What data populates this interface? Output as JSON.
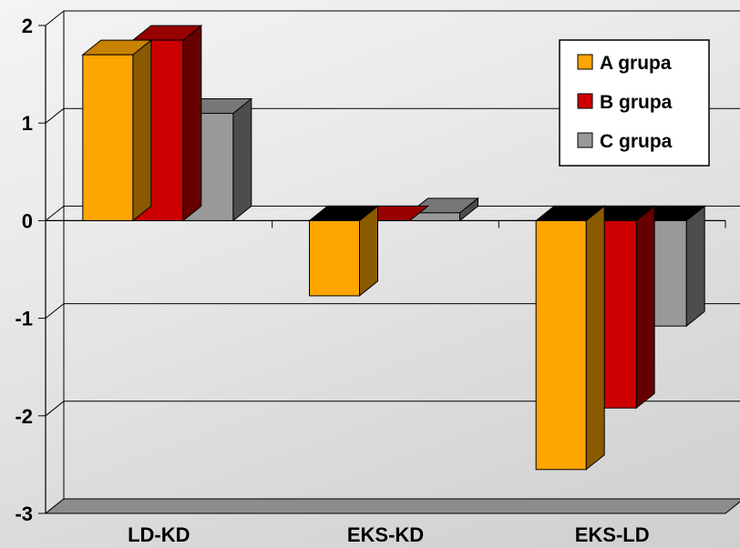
{
  "chart_data": {
    "type": "bar",
    "style": "3d-clustered-column",
    "categories": [
      "LD-KD",
      "EKS-KD",
      "EKS-LD"
    ],
    "series": [
      {
        "name": "A grupa",
        "values": [
          1.7,
          -0.77,
          -2.55
        ],
        "color": "#FFA500",
        "side_color": "#8A5A00",
        "top_color": "#C98200"
      },
      {
        "name": "B grupa",
        "values": [
          1.85,
          0.0,
          -1.92
        ],
        "color": "#CC0000",
        "side_color": "#660000",
        "top_color": "#990000"
      },
      {
        "name": "C grupa",
        "values": [
          1.1,
          0.08,
          -1.08
        ],
        "color": "#999999",
        "side_color": "#4D4D4D",
        "top_color": "#777777"
      }
    ],
    "ylim": [
      -3,
      2
    ],
    "yticks": [
      "-3",
      "-2",
      "-1",
      "0",
      "1",
      "2"
    ],
    "grid": true,
    "legend_position": "top-right",
    "title": "",
    "xlabel": "",
    "ylabel": ""
  }
}
